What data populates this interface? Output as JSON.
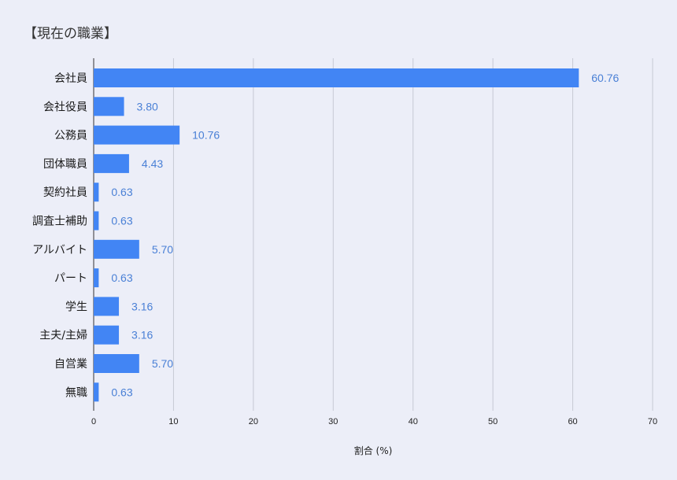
{
  "chart_data": {
    "type": "bar",
    "orientation": "horizontal",
    "title": "【現在の職業】",
    "xlabel": "割合 (%)",
    "ylabel": "",
    "categories": [
      "会社員",
      "会社役員",
      "公務員",
      "団体職員",
      "契約社員",
      "調査士補助",
      "アルバイト",
      "パート",
      "学生",
      "主夫/主婦",
      "自営業",
      "無職"
    ],
    "values": [
      60.76,
      3.8,
      10.76,
      4.43,
      0.63,
      0.63,
      5.7,
      0.63,
      3.16,
      3.16,
      5.7,
      0.63
    ],
    "value_labels": [
      "60.76",
      "3.80",
      "10.76",
      "4.43",
      "0.63",
      "0.63",
      "5.70",
      "0.63",
      "3.16",
      "3.16",
      "5.70",
      "0.63"
    ],
    "xlim": [
      0,
      70
    ],
    "xticks": [
      "0",
      "10",
      "20",
      "30",
      "40",
      "50",
      "60",
      "70"
    ],
    "grid": true,
    "legend": "none",
    "colors": {
      "bar": "#4285f4",
      "value_label": "#4a80d6",
      "grid": "#c6c9d4",
      "background": "#eceef8"
    }
  }
}
